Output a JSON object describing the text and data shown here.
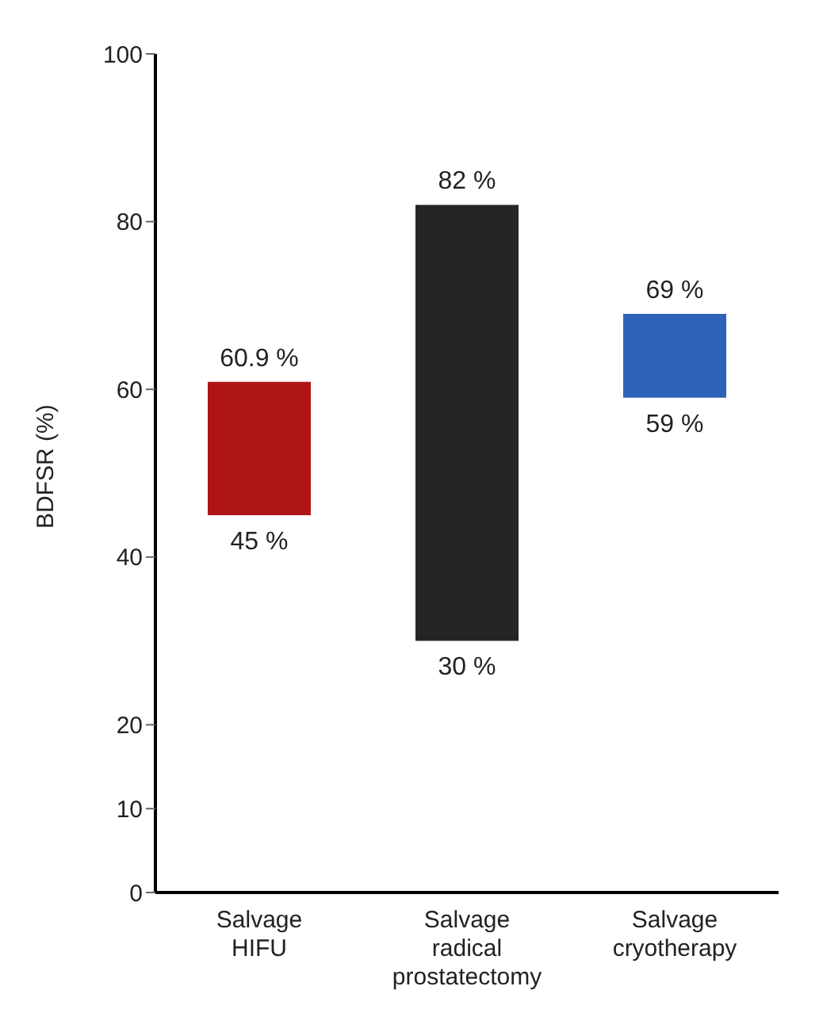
{
  "chart_data": {
    "type": "bar",
    "ylabel": "BDFSR (%)",
    "categories": [
      "Salvage HIFU",
      "Salvage radical prostatectomy",
      "Salvage cryotherapy"
    ],
    "base": [
      45,
      30,
      59
    ],
    "values": [
      15.9,
      52,
      10
    ],
    "colors": [
      "#b01515",
      "#252525",
      "#2e62b8"
    ],
    "ylim": [
      0,
      100
    ],
    "yticks": [
      0,
      10,
      20,
      40,
      60,
      80,
      100
    ],
    "annotations": [
      {
        "text": "60.9 %",
        "x": "Salvage HIFU",
        "y": 60.9
      },
      {
        "text": "45 %",
        "x": "Salvage HIFU",
        "y": 45
      },
      {
        "text": "82 %",
        "x": "Salvage radical prostatectomy",
        "y": 82
      },
      {
        "text": "30 %",
        "x": "Salvage radical prostatectomy",
        "y": 30
      },
      {
        "text": "69 %",
        "x": "Salvage cryotherapy",
        "y": 69
      },
      {
        "text": "59 %",
        "x": "Salvage cryotherapy",
        "y": 59
      }
    ]
  }
}
